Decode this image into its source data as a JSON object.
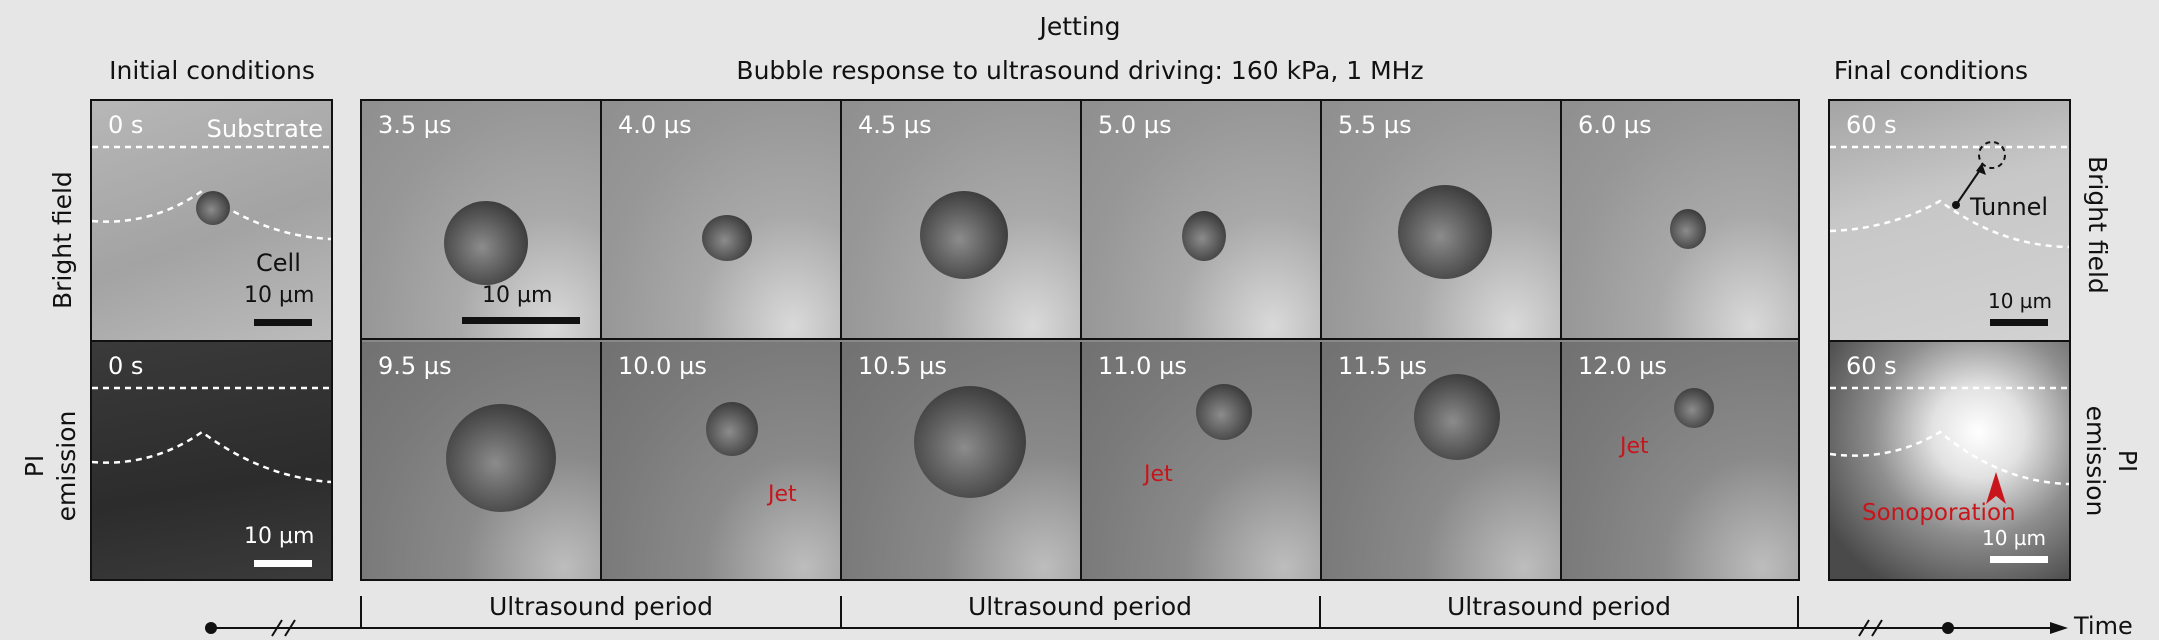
{
  "header": {
    "jetting_title": "Jetting",
    "subtitle": "Bubble response to ultrasound driving: 160 kPa, 1 MHz",
    "initial_title": "Initial conditions",
    "final_title": "Final conditions"
  },
  "row_labels": {
    "left_top": "Bright field",
    "left_bottom_line1": "PI",
    "left_bottom_line2": "emission",
    "right_top": "Bright field",
    "right_bottom_line1": "PI",
    "right_bottom_line2": "emission"
  },
  "initial": {
    "bf_time": "0 s",
    "substrate_label": "Substrate",
    "cell_label": "Cell",
    "bf_scale": "10 µm",
    "pi_time": "0 s",
    "pi_scale": "10 µm"
  },
  "sequence": {
    "top_times": [
      "3.5 µs",
      "4.0 µs",
      "4.5 µs",
      "5.0 µs",
      "5.5 µs",
      "6.0 µs"
    ],
    "bottom_times": [
      "9.5 µs",
      "10.0 µs",
      "10.5 µs",
      "11.0 µs",
      "11.5 µs",
      "12.0 µs"
    ],
    "scale": "10 µm",
    "jet_label": "Jet"
  },
  "final": {
    "bf_time": "60 s",
    "tunnel_label": "Tunnel",
    "bf_scale": "10 µm",
    "pi_time": "60 s",
    "sonoporation_label": "Sonoporation",
    "pi_scale": "10 µm"
  },
  "timeline": {
    "period_labels": [
      "Ultrasound period",
      "Ultrasound period",
      "Ultrasound period"
    ],
    "axis_label": "Time"
  },
  "colors": {
    "annotation_red": "#c8151b",
    "panel_border": "#111111"
  }
}
